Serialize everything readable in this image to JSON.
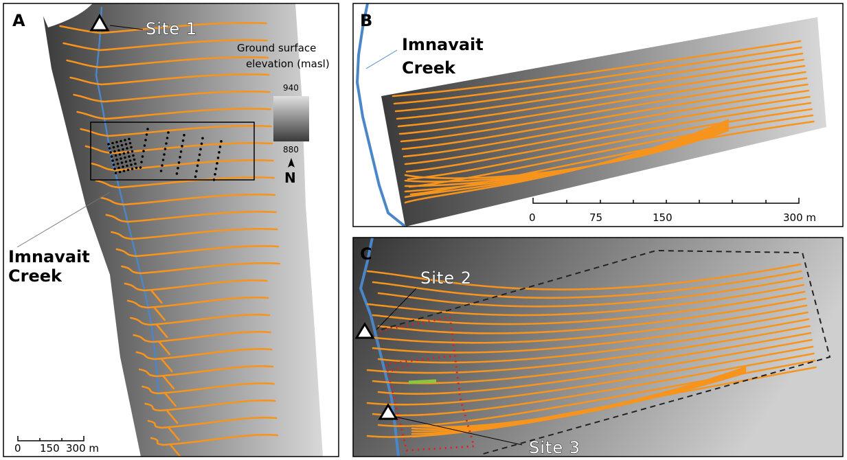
{
  "panels": {
    "a": {
      "label": "A",
      "site": "Site 1",
      "creek": [
        "Imnavait",
        "Creek"
      ],
      "legend": {
        "title": [
          "Ground surface",
          "elevation (masl)"
        ],
        "max": "940",
        "min": "880"
      },
      "north": "N",
      "scale": [
        "0",
        "150",
        "300 m"
      ]
    },
    "b": {
      "label": "B",
      "creek": [
        "Imnavait",
        "Creek"
      ],
      "scale": [
        "0",
        "75",
        "150",
        "300 m"
      ]
    },
    "c": {
      "label": "C",
      "sites": [
        "Site 2",
        "Site 3"
      ]
    }
  }
}
